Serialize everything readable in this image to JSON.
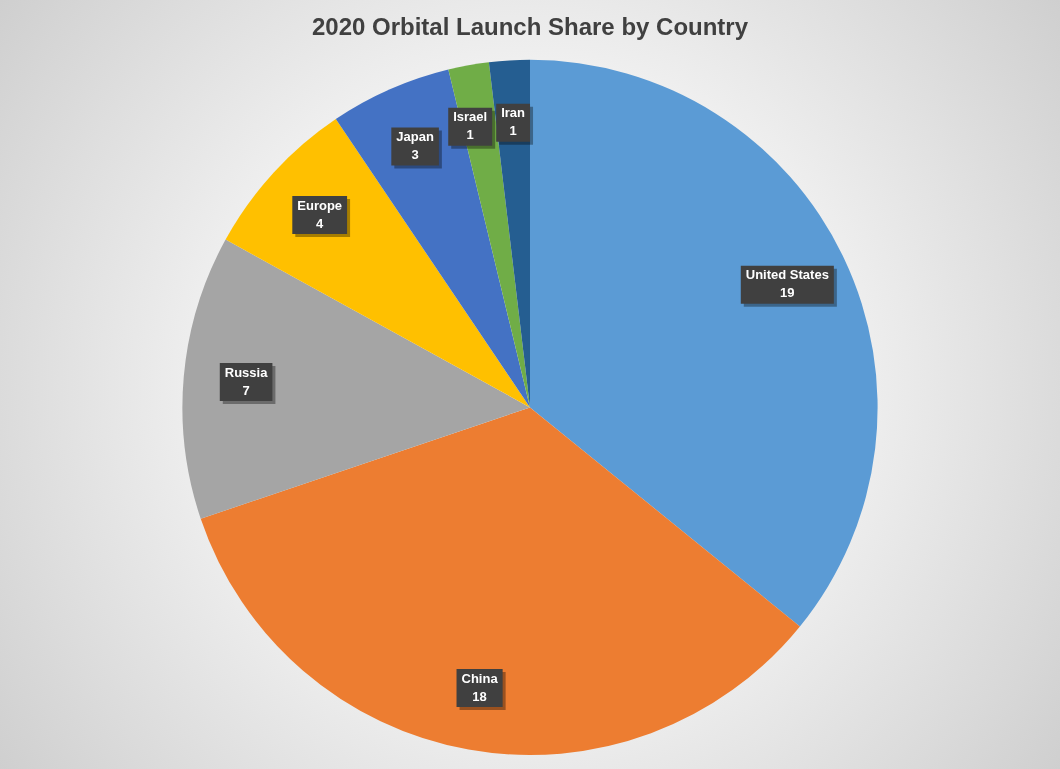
{
  "chart_data": {
    "type": "pie",
    "title": "2020 Orbital Launch Share by Country",
    "categories": [
      "United States",
      "China",
      "Russia",
      "Europe",
      "Japan",
      "Israel",
      "Iran"
    ],
    "values": [
      19,
      18,
      7,
      4,
      3,
      1,
      1
    ],
    "colors": [
      "#5b9bd5",
      "#ed7d31",
      "#a5a5a5",
      "#ffc000",
      "#4472c4",
      "#70ad47",
      "#255e91"
    ],
    "data_labels": true,
    "legend": false
  }
}
